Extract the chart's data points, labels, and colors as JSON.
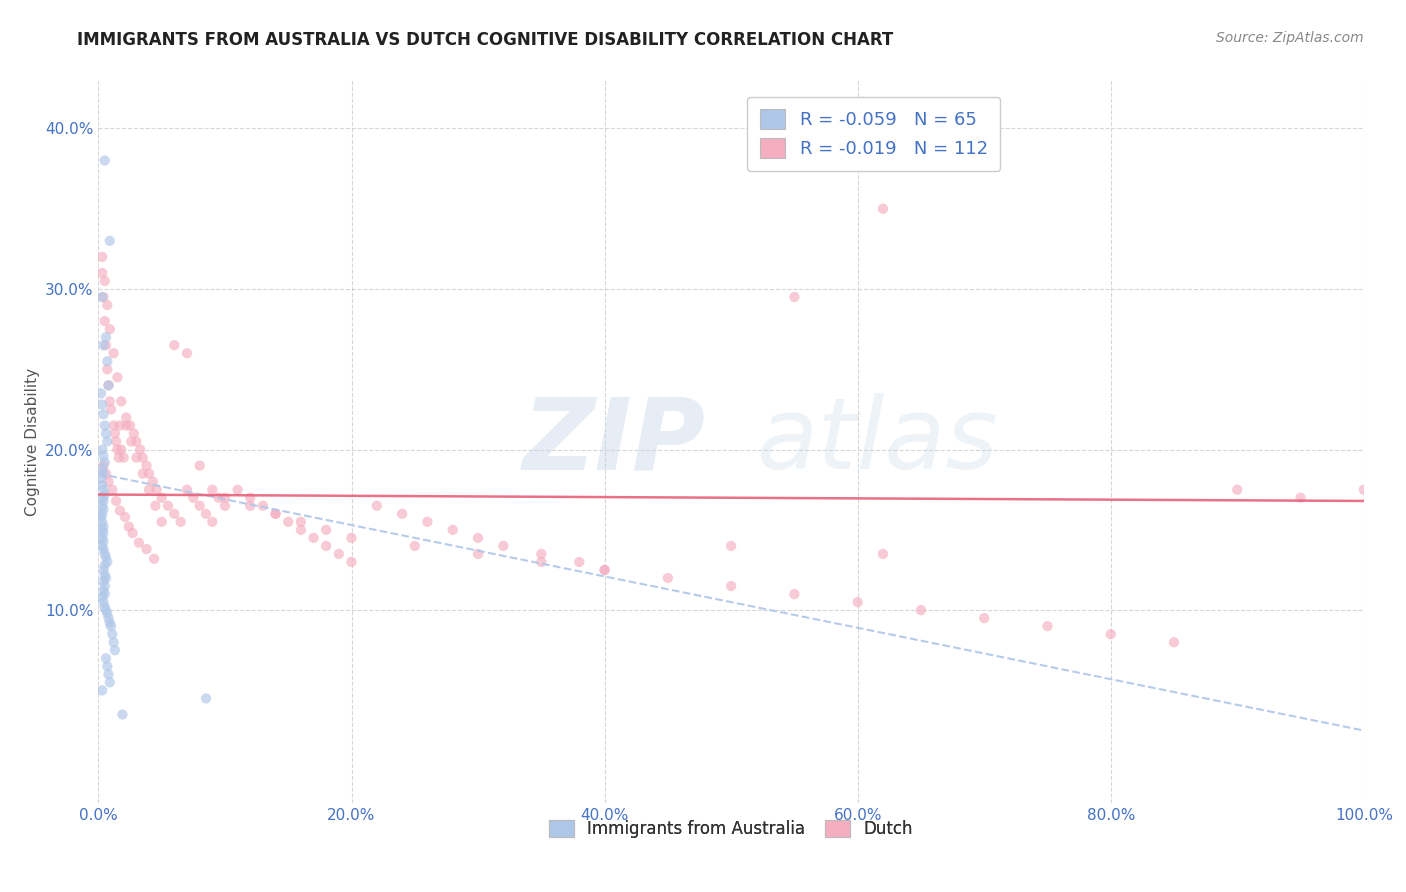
{
  "title": "IMMIGRANTS FROM AUSTRALIA VS DUTCH COGNITIVE DISABILITY CORRELATION CHART",
  "source": "Source: ZipAtlas.com",
  "ylabel": "Cognitive Disability",
  "xlim": [
    0.0,
    1.0
  ],
  "ylim": [
    -0.02,
    0.43
  ],
  "x_ticks": [
    0.0,
    0.2,
    0.4,
    0.6,
    0.8,
    1.0
  ],
  "x_tick_labels": [
    "0.0%",
    "20.0%",
    "40.0%",
    "60.0%",
    "80.0%",
    "100.0%"
  ],
  "y_ticks": [
    0.1,
    0.2,
    0.3,
    0.4
  ],
  "y_tick_labels": [
    "10.0%",
    "20.0%",
    "30.0%",
    "40.0%"
  ],
  "legend_r1": "R = -0.059",
  "legend_n1": "N = 65",
  "legend_r2": "R = -0.019",
  "legend_n2": "N = 112",
  "color_australia": "#aec6e8",
  "color_dutch": "#f4aec0",
  "color_australia_line": "#aec6e8",
  "color_dutch_line": "#e8607a",
  "background_color": "#ffffff",
  "grid_color": "#cccccc",
  "watermark_zip": "ZIP",
  "watermark_atlas": "atlas",
  "title_fontsize": 12,
  "axis_label_fontsize": 11,
  "tick_fontsize": 11,
  "scatter_size": 55,
  "scatter_alpha": 0.65,
  "aus_trend_start_y": 0.185,
  "aus_trend_end_y": 0.025,
  "dutch_trend_start_y": 0.172,
  "dutch_trend_end_y": 0.168,
  "australia_x": [
    0.005,
    0.009,
    0.003,
    0.006,
    0.004,
    0.007,
    0.008,
    0.002,
    0.003,
    0.004,
    0.005,
    0.006,
    0.007,
    0.003,
    0.004,
    0.005,
    0.003,
    0.004,
    0.002,
    0.003,
    0.004,
    0.005,
    0.003,
    0.004,
    0.003,
    0.004,
    0.003,
    0.002,
    0.003,
    0.004,
    0.003,
    0.004,
    0.003,
    0.004,
    0.003,
    0.004,
    0.005,
    0.006,
    0.007,
    0.005,
    0.004,
    0.005,
    0.006,
    0.004,
    0.005,
    0.004,
    0.005,
    0.003,
    0.004,
    0.005,
    0.006,
    0.007,
    0.008,
    0.009,
    0.01,
    0.011,
    0.012,
    0.013,
    0.006,
    0.007,
    0.008,
    0.009,
    0.003,
    0.019,
    0.085
  ],
  "australia_y": [
    0.38,
    0.33,
    0.295,
    0.27,
    0.265,
    0.255,
    0.24,
    0.235,
    0.228,
    0.222,
    0.215,
    0.21,
    0.205,
    0.2,
    0.196,
    0.192,
    0.188,
    0.185,
    0.182,
    0.178,
    0.175,
    0.172,
    0.17,
    0.168,
    0.165,
    0.163,
    0.16,
    0.158,
    0.155,
    0.152,
    0.15,
    0.148,
    0.145,
    0.143,
    0.14,
    0.138,
    0.135,
    0.133,
    0.13,
    0.128,
    0.125,
    0.122,
    0.12,
    0.118,
    0.115,
    0.112,
    0.11,
    0.108,
    0.105,
    0.102,
    0.1,
    0.098,
    0.095,
    0.092,
    0.09,
    0.085,
    0.08,
    0.075,
    0.07,
    0.065,
    0.06,
    0.055,
    0.05,
    0.035,
    0.045
  ],
  "dutch_x": [
    0.003,
    0.004,
    0.005,
    0.006,
    0.007,
    0.008,
    0.009,
    0.01,
    0.012,
    0.013,
    0.014,
    0.015,
    0.016,
    0.017,
    0.018,
    0.02,
    0.022,
    0.025,
    0.028,
    0.03,
    0.033,
    0.035,
    0.038,
    0.04,
    0.043,
    0.046,
    0.05,
    0.055,
    0.06,
    0.065,
    0.07,
    0.075,
    0.08,
    0.085,
    0.09,
    0.095,
    0.1,
    0.11,
    0.12,
    0.13,
    0.14,
    0.15,
    0.16,
    0.17,
    0.18,
    0.19,
    0.2,
    0.22,
    0.24,
    0.26,
    0.28,
    0.3,
    0.32,
    0.35,
    0.38,
    0.4,
    0.45,
    0.5,
    0.55,
    0.6,
    0.65,
    0.7,
    0.75,
    0.8,
    0.85,
    0.9,
    0.95,
    1.0,
    0.003,
    0.005,
    0.007,
    0.009,
    0.012,
    0.015,
    0.018,
    0.022,
    0.026,
    0.03,
    0.035,
    0.04,
    0.045,
    0.05,
    0.06,
    0.07,
    0.08,
    0.09,
    0.1,
    0.12,
    0.14,
    0.16,
    0.18,
    0.2,
    0.25,
    0.3,
    0.35,
    0.4,
    0.5,
    0.62,
    0.004,
    0.006,
    0.008,
    0.011,
    0.014,
    0.017,
    0.021,
    0.024,
    0.027,
    0.032,
    0.038,
    0.044,
    0.55,
    0.62
  ],
  "dutch_y": [
    0.31,
    0.295,
    0.28,
    0.265,
    0.25,
    0.24,
    0.23,
    0.225,
    0.215,
    0.21,
    0.205,
    0.2,
    0.195,
    0.215,
    0.2,
    0.195,
    0.22,
    0.215,
    0.21,
    0.205,
    0.2,
    0.195,
    0.19,
    0.185,
    0.18,
    0.175,
    0.17,
    0.165,
    0.16,
    0.155,
    0.175,
    0.17,
    0.165,
    0.16,
    0.155,
    0.17,
    0.165,
    0.175,
    0.17,
    0.165,
    0.16,
    0.155,
    0.15,
    0.145,
    0.14,
    0.135,
    0.13,
    0.165,
    0.16,
    0.155,
    0.15,
    0.145,
    0.14,
    0.135,
    0.13,
    0.125,
    0.12,
    0.115,
    0.11,
    0.105,
    0.1,
    0.095,
    0.09,
    0.085,
    0.08,
    0.175,
    0.17,
    0.175,
    0.32,
    0.305,
    0.29,
    0.275,
    0.26,
    0.245,
    0.23,
    0.215,
    0.205,
    0.195,
    0.185,
    0.175,
    0.165,
    0.155,
    0.265,
    0.26,
    0.19,
    0.175,
    0.17,
    0.165,
    0.16,
    0.155,
    0.15,
    0.145,
    0.14,
    0.135,
    0.13,
    0.125,
    0.14,
    0.135,
    0.19,
    0.185,
    0.18,
    0.175,
    0.168,
    0.162,
    0.158,
    0.152,
    0.148,
    0.142,
    0.138,
    0.132,
    0.295,
    0.35
  ]
}
